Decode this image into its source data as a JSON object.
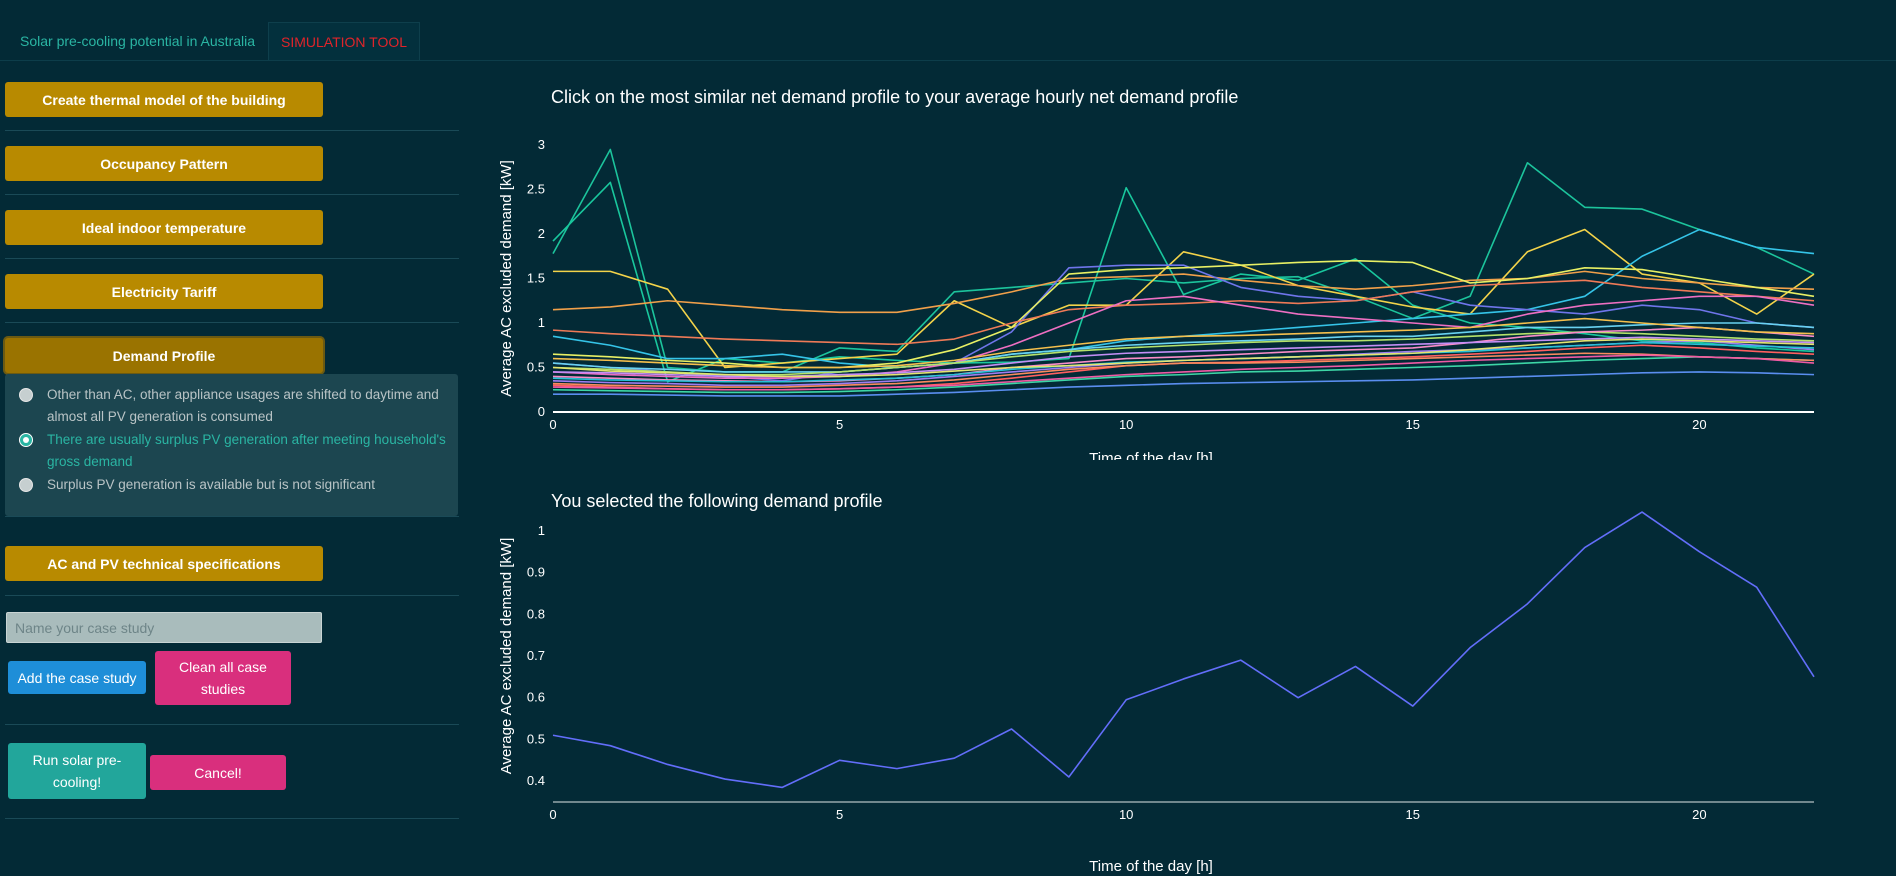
{
  "tabs": [
    {
      "label": "Solar pre-cooling potential in Australia"
    },
    {
      "label": "SIMULATION TOOL"
    }
  ],
  "sidebar": {
    "buttons": [
      {
        "label": "Create thermal model of the building"
      },
      {
        "label": "Occupancy Pattern"
      },
      {
        "label": "Ideal indoor temperature"
      },
      {
        "label": "Electricity Tariff"
      },
      {
        "label": "Demand Profile"
      },
      {
        "label": "AC and PV technical specifications"
      }
    ],
    "radio_options": [
      {
        "label": "Other than AC, other appliance usages are shifted to daytime and almost all PV generation is consumed",
        "selected": false
      },
      {
        "label": "There are usually surplus PV generation after meeting household's gross demand",
        "selected": true
      },
      {
        "label": "Surplus PV generation is available but is not significant",
        "selected": false
      }
    ],
    "case_input": {
      "placeholder": "Name your case study",
      "value": ""
    },
    "add_case_label": "Add the case study",
    "clean_cases_label": "Clean all case studies",
    "run_label": "Run solar pre-cooling!",
    "cancel_label": "Cancel!"
  },
  "colors": {
    "background": "#032a36",
    "gold_button": "#b88a00",
    "pink_button": "#d92f7d",
    "blue_button": "#1e8ed8",
    "teal_button": "#22a69b",
    "accent_teal": "#2ab5a3",
    "active_tab": "#e0242a"
  },
  "chart_data": [
    {
      "type": "line",
      "title": "Click on the most similar net demand profile to your average hourly net demand profile",
      "xlabel": "Time of the day [h]",
      "ylabel": "Average AC excluded demand [kW]",
      "xlim": [
        0,
        22
      ],
      "ylim": [
        0,
        3
      ],
      "xticks": [
        0,
        5,
        10,
        15,
        20
      ],
      "yticks": [
        0,
        0.5,
        1,
        1.5,
        2,
        2.5,
        3
      ],
      "grid": false,
      "x": [
        0,
        1,
        2,
        3,
        4,
        5,
        6,
        7,
        8,
        9,
        10,
        11,
        12,
        13,
        14,
        15,
        16,
        17,
        18,
        19,
        20,
        21,
        22
      ],
      "series": [
        {
          "color": "#1cc49c",
          "values": [
            1.78,
            2.95,
            0.5,
            0.45,
            0.45,
            0.72,
            0.68,
            1.35,
            1.4,
            1.45,
            1.5,
            1.45,
            1.5,
            1.52,
            1.3,
            1.05,
            1.3,
            2.8,
            2.3,
            2.28,
            2.05,
            1.85,
            1.55
          ]
        },
        {
          "color": "#19c79d",
          "values": [
            1.92,
            2.58,
            0.34,
            0.6,
            0.55,
            0.62,
            0.58,
            0.55,
            0.56,
            0.6,
            2.52,
            1.32,
            1.55,
            1.48,
            1.72,
            1.2,
            1.0,
            0.95,
            0.88,
            0.8,
            0.78,
            0.72,
            0.68
          ]
        },
        {
          "color": "#f3d34a",
          "values": [
            1.58,
            1.58,
            1.38,
            0.5,
            0.55,
            0.6,
            0.65,
            1.25,
            0.95,
            1.2,
            1.2,
            1.8,
            1.65,
            1.42,
            1.3,
            1.18,
            1.1,
            1.8,
            2.05,
            1.55,
            1.45,
            1.1,
            1.55
          ]
        },
        {
          "color": "#f1a04a",
          "values": [
            1.15,
            1.18,
            1.25,
            1.2,
            1.15,
            1.12,
            1.12,
            1.22,
            1.35,
            1.5,
            1.52,
            1.55,
            1.48,
            1.42,
            1.38,
            1.42,
            1.48,
            1.5,
            1.58,
            1.5,
            1.45,
            1.4,
            1.38
          ]
        },
        {
          "color": "#35c4e8",
          "values": [
            0.85,
            0.75,
            0.6,
            0.6,
            0.65,
            0.55,
            0.5,
            0.55,
            0.65,
            0.7,
            0.8,
            0.85,
            0.9,
            0.95,
            1.0,
            1.05,
            1.1,
            1.15,
            1.3,
            1.75,
            2.05,
            1.85,
            1.78
          ]
        },
        {
          "color": "#6f75ea",
          "values": [
            0.55,
            0.5,
            0.45,
            0.4,
            0.35,
            0.45,
            0.5,
            0.55,
            0.9,
            1.62,
            1.65,
            1.65,
            1.4,
            1.3,
            1.25,
            1.35,
            1.2,
            1.15,
            1.1,
            1.2,
            1.15,
            1.0,
            0.95
          ]
        },
        {
          "color": "#e8f064",
          "values": [
            0.65,
            0.62,
            0.58,
            0.55,
            0.5,
            0.5,
            0.55,
            0.7,
            0.95,
            1.55,
            1.6,
            1.62,
            1.65,
            1.68,
            1.7,
            1.68,
            1.45,
            1.5,
            1.62,
            1.6,
            1.5,
            1.4,
            1.3
          ]
        },
        {
          "color": "#ef7a57",
          "values": [
            0.92,
            0.88,
            0.85,
            0.82,
            0.8,
            0.78,
            0.76,
            0.82,
            1.0,
            1.15,
            1.2,
            1.22,
            1.25,
            1.22,
            1.25,
            1.35,
            1.42,
            1.45,
            1.48,
            1.4,
            1.35,
            1.3,
            1.25
          ]
        },
        {
          "color": "#ee6fc2",
          "values": [
            0.45,
            0.42,
            0.4,
            0.38,
            0.38,
            0.4,
            0.45,
            0.55,
            0.75,
            1.0,
            1.25,
            1.3,
            1.2,
            1.1,
            1.05,
            1.0,
            0.95,
            1.1,
            1.2,
            1.25,
            1.3,
            1.3,
            1.2
          ]
        },
        {
          "color": "#69d2f1",
          "values": [
            0.55,
            0.5,
            0.48,
            0.45,
            0.45,
            0.45,
            0.5,
            0.55,
            0.65,
            0.7,
            0.75,
            0.78,
            0.8,
            0.82,
            0.85,
            0.85,
            0.9,
            0.95,
            0.95,
            0.98,
            1.0,
            1.0,
            0.95
          ]
        },
        {
          "color": "#b4e26a",
          "values": [
            0.5,
            0.48,
            0.45,
            0.42,
            0.42,
            0.45,
            0.5,
            0.55,
            0.62,
            0.68,
            0.72,
            0.75,
            0.78,
            0.8,
            0.8,
            0.82,
            0.85,
            0.88,
            0.9,
            0.88,
            0.85,
            0.82,
            0.8
          ]
        },
        {
          "color": "#ff5f5f",
          "values": [
            0.3,
            0.28,
            0.26,
            0.25,
            0.25,
            0.26,
            0.28,
            0.32,
            0.38,
            0.45,
            0.52,
            0.55,
            0.56,
            0.58,
            0.6,
            0.62,
            0.65,
            0.68,
            0.72,
            0.75,
            0.72,
            0.68,
            0.65
          ]
        },
        {
          "color": "#9d7cf0",
          "values": [
            0.35,
            0.33,
            0.32,
            0.3,
            0.3,
            0.32,
            0.35,
            0.4,
            0.45,
            0.5,
            0.55,
            0.58,
            0.6,
            0.62,
            0.65,
            0.68,
            0.7,
            0.72,
            0.75,
            0.78,
            0.8,
            0.75,
            0.7
          ]
        },
        {
          "color": "#f88cc8",
          "values": [
            0.4,
            0.38,
            0.36,
            0.35,
            0.34,
            0.35,
            0.38,
            0.42,
            0.5,
            0.55,
            0.6,
            0.62,
            0.65,
            0.68,
            0.7,
            0.72,
            0.78,
            0.85,
            0.9,
            0.92,
            0.95,
            0.9,
            0.85
          ]
        },
        {
          "color": "#3dd6a6",
          "values": [
            0.25,
            0.24,
            0.23,
            0.22,
            0.22,
            0.23,
            0.25,
            0.28,
            0.32,
            0.36,
            0.4,
            0.42,
            0.45,
            0.46,
            0.48,
            0.5,
            0.52,
            0.55,
            0.58,
            0.6,
            0.62,
            0.6,
            0.58
          ]
        },
        {
          "color": "#f5c04d",
          "values": [
            0.6,
            0.58,
            0.55,
            0.52,
            0.5,
            0.5,
            0.52,
            0.58,
            0.68,
            0.75,
            0.82,
            0.85,
            0.86,
            0.88,
            0.9,
            0.92,
            0.95,
            1.0,
            1.05,
            1.0,
            0.95,
            0.9,
            0.88
          ]
        },
        {
          "color": "#5a8ef0",
          "values": [
            0.2,
            0.2,
            0.19,
            0.18,
            0.18,
            0.18,
            0.2,
            0.22,
            0.25,
            0.28,
            0.3,
            0.32,
            0.33,
            0.34,
            0.35,
            0.36,
            0.38,
            0.4,
            0.42,
            0.44,
            0.45,
            0.44,
            0.42
          ]
        },
        {
          "color": "#fa8a5e",
          "values": [
            0.32,
            0.3,
            0.29,
            0.28,
            0.28,
            0.3,
            0.32,
            0.36,
            0.42,
            0.48,
            0.52,
            0.55,
            0.55,
            0.56,
            0.58,
            0.6,
            0.62,
            0.64,
            0.66,
            0.65,
            0.62,
            0.6,
            0.58
          ]
        },
        {
          "color": "#c38ef5",
          "values": [
            0.45,
            0.44,
            0.42,
            0.4,
            0.4,
            0.42,
            0.44,
            0.48,
            0.55,
            0.62,
            0.66,
            0.68,
            0.7,
            0.72,
            0.74,
            0.76,
            0.78,
            0.8,
            0.82,
            0.84,
            0.82,
            0.8,
            0.78
          ]
        },
        {
          "color": "#27c1d6",
          "values": [
            0.38,
            0.36,
            0.35,
            0.34,
            0.34,
            0.36,
            0.38,
            0.42,
            0.48,
            0.52,
            0.56,
            0.58,
            0.6,
            0.62,
            0.64,
            0.66,
            0.68,
            0.72,
            0.75,
            0.78,
            0.76,
            0.74,
            0.72
          ]
        },
        {
          "color": "#e4e46f",
          "values": [
            0.5,
            0.46,
            0.44,
            0.42,
            0.4,
            0.4,
            0.42,
            0.46,
            0.5,
            0.52,
            0.55,
            0.58,
            0.6,
            0.62,
            0.64,
            0.66,
            0.7,
            0.75,
            0.8,
            0.82,
            0.8,
            0.78,
            0.76
          ]
        },
        {
          "color": "#ef5aa4",
          "values": [
            0.28,
            0.27,
            0.26,
            0.25,
            0.25,
            0.26,
            0.28,
            0.3,
            0.34,
            0.38,
            0.42,
            0.45,
            0.48,
            0.5,
            0.52,
            0.55,
            0.58,
            0.6,
            0.62,
            0.64,
            0.62,
            0.6,
            0.55
          ]
        }
      ]
    },
    {
      "type": "line",
      "title": "You selected the following demand profile",
      "xlabel": "Time of the day [h]",
      "ylabel": "Average AC excluded demand [kW]",
      "xlim": [
        0,
        22
      ],
      "ylim": [
        0.35,
        1.05
      ],
      "xticks": [
        0,
        5,
        10,
        15,
        20
      ],
      "yticks": [
        0.4,
        0.5,
        0.6,
        0.7,
        0.8,
        0.9,
        1
      ],
      "grid": false,
      "x": [
        0,
        1,
        2,
        3,
        4,
        5,
        6,
        7,
        8,
        9,
        10,
        11,
        12,
        13,
        14,
        15,
        16,
        17,
        18,
        19,
        20,
        21,
        22
      ],
      "series": [
        {
          "color": "#636efa",
          "values": [
            0.51,
            0.485,
            0.44,
            0.405,
            0.385,
            0.45,
            0.43,
            0.455,
            0.525,
            0.41,
            0.595,
            0.645,
            0.69,
            0.6,
            0.675,
            0.58,
            0.72,
            0.825,
            0.96,
            1.045,
            0.95,
            0.865,
            0.65
          ]
        }
      ]
    }
  ]
}
